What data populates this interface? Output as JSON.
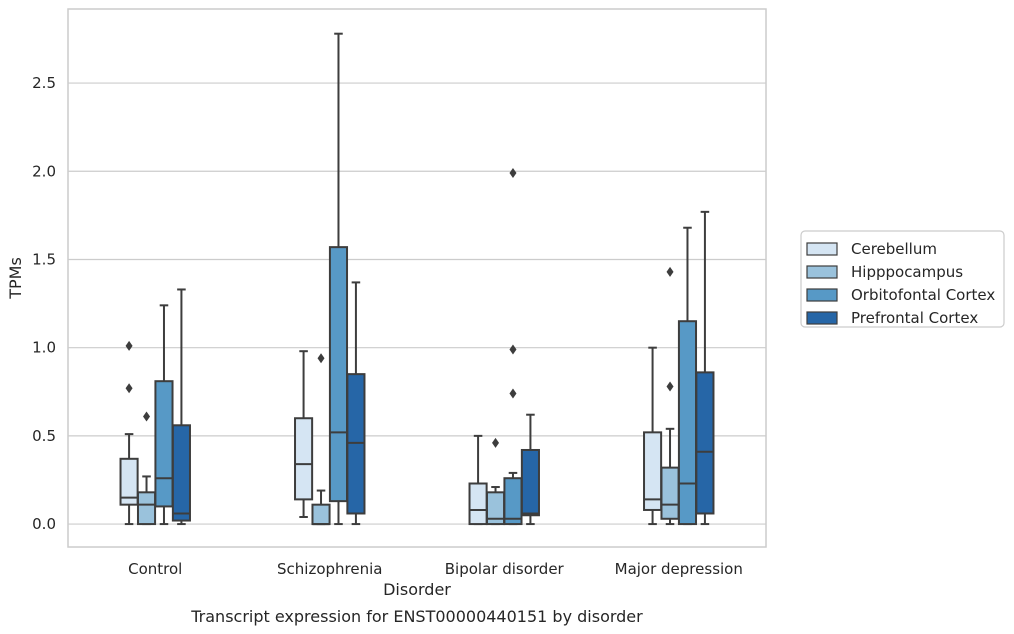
{
  "chart_data": {
    "type": "box",
    "title": "Transcript expression for ENST00000440151 by disorder",
    "xlabel": "Disorder",
    "ylabel": "TPMs",
    "ylim": [
      -0.13,
      2.92
    ],
    "yticks": [
      0.0,
      0.5,
      1.0,
      1.5,
      2.0,
      2.5
    ],
    "ytick_labels": [
      "0.0",
      "0.5",
      "1.0",
      "1.5",
      "2.0",
      "2.5"
    ],
    "grid": true,
    "legend_position": "right",
    "categories": [
      "Control",
      "Schizophrenia",
      "Bipolar disorder",
      "Major depression"
    ],
    "series": [
      {
        "name": "Cerebellum",
        "color": "#d5e5f3",
        "boxes": [
          {
            "whislo": 0.0,
            "q1": 0.11,
            "med": 0.15,
            "q3": 0.37,
            "whishi": 0.51,
            "fliers": [
              0.77,
              1.01
            ]
          },
          {
            "whislo": 0.04,
            "q1": 0.14,
            "med": 0.34,
            "q3": 0.6,
            "whishi": 0.98,
            "fliers": []
          },
          {
            "whislo": 0.0,
            "q1": 0.0,
            "med": 0.08,
            "q3": 0.23,
            "whishi": 0.5,
            "fliers": []
          },
          {
            "whislo": 0.0,
            "q1": 0.08,
            "med": 0.14,
            "q3": 0.52,
            "whishi": 1.0,
            "fliers": []
          }
        ]
      },
      {
        "name": "Hipppocampus",
        "color": "#9ac2dc",
        "boxes": [
          {
            "whislo": 0.0,
            "q1": 0.0,
            "med": 0.11,
            "q3": 0.18,
            "whishi": 0.27,
            "fliers": [
              0.61
            ]
          },
          {
            "whislo": 0.0,
            "q1": 0.0,
            "med": 0.0,
            "q3": 0.11,
            "whishi": 0.19,
            "fliers": [
              0.94
            ]
          },
          {
            "whislo": 0.0,
            "q1": 0.0,
            "med": 0.03,
            "q3": 0.18,
            "whishi": 0.21,
            "fliers": [
              0.46
            ]
          },
          {
            "whislo": 0.0,
            "q1": 0.03,
            "med": 0.11,
            "q3": 0.32,
            "whishi": 0.54,
            "fliers": [
              0.78,
              1.43
            ]
          }
        ]
      },
      {
        "name": "Orbitofontal Cortex",
        "color": "#5799c6",
        "boxes": [
          {
            "whislo": 0.0,
            "q1": 0.1,
            "med": 0.26,
            "q3": 0.81,
            "whishi": 1.24,
            "fliers": []
          },
          {
            "whislo": 0.0,
            "q1": 0.13,
            "med": 0.52,
            "q3": 1.57,
            "whishi": 2.78,
            "fliers": []
          },
          {
            "whislo": 0.0,
            "q1": 0.0,
            "med": 0.03,
            "q3": 0.26,
            "whishi": 0.29,
            "fliers": [
              0.74,
              0.99,
              1.99
            ]
          },
          {
            "whislo": 0.0,
            "q1": 0.0,
            "med": 0.23,
            "q3": 1.15,
            "whishi": 1.68,
            "fliers": []
          }
        ]
      },
      {
        "name": "Prefrontal Cortex",
        "color": "#2666a7",
        "boxes": [
          {
            "whislo": 0.0,
            "q1": 0.02,
            "med": 0.06,
            "q3": 0.56,
            "whishi": 1.33,
            "fliers": []
          },
          {
            "whislo": 0.0,
            "q1": 0.06,
            "med": 0.46,
            "q3": 0.85,
            "whishi": 1.37,
            "fliers": []
          },
          {
            "whislo": 0.0,
            "q1": 0.05,
            "med": 0.06,
            "q3": 0.42,
            "whishi": 0.62,
            "fliers": []
          },
          {
            "whislo": 0.0,
            "q1": 0.06,
            "med": 0.41,
            "q3": 0.86,
            "whishi": 1.77,
            "fliers": []
          }
        ]
      }
    ]
  }
}
